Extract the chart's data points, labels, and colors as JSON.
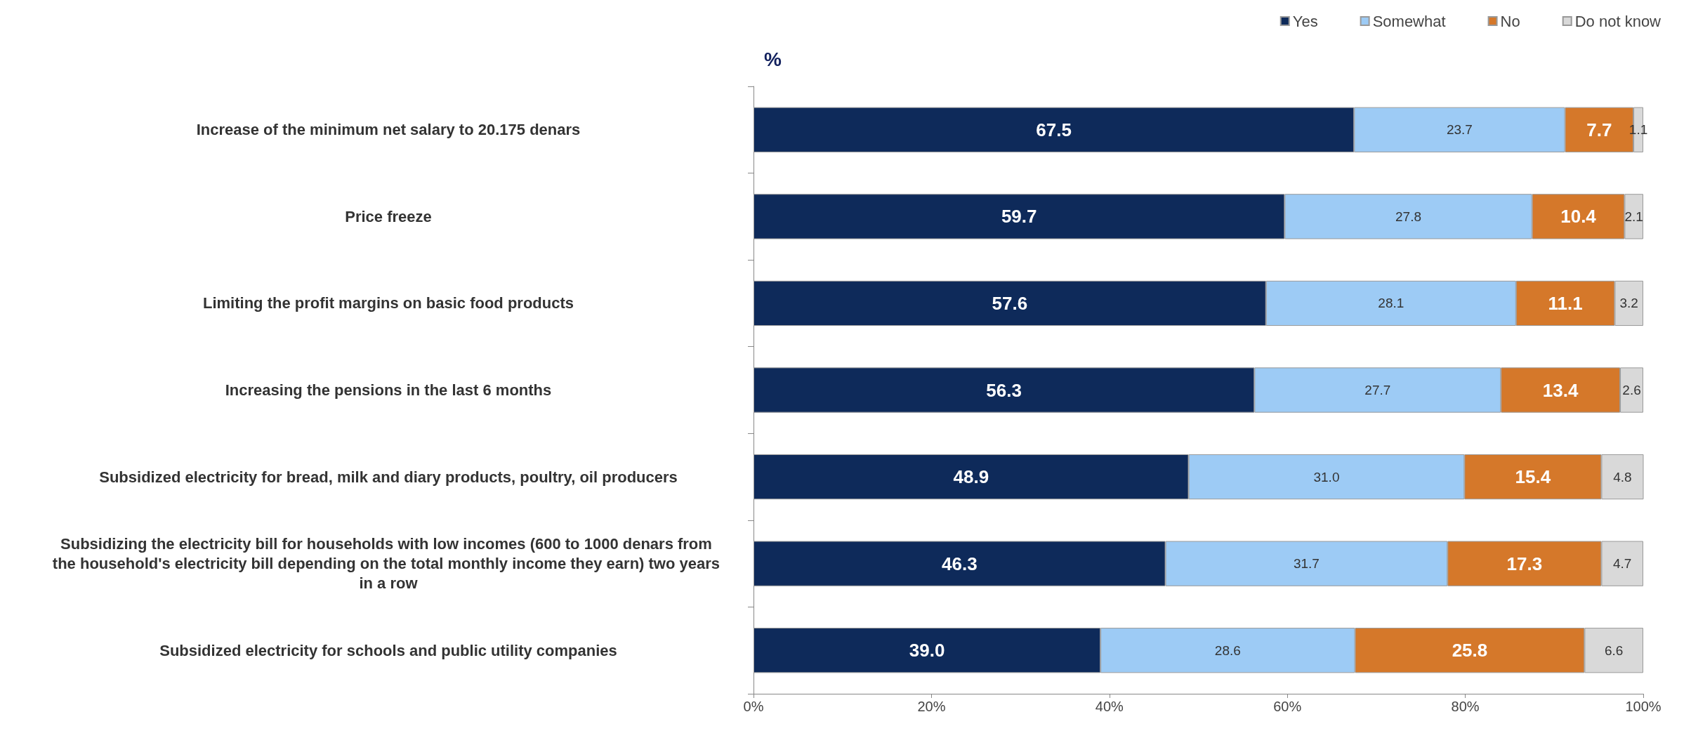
{
  "chart_data": {
    "type": "bar",
    "orientation": "horizontal",
    "stacked": true,
    "categories": [
      "Increase of the minimum net salary to 20.175 denars",
      "Price freeze",
      "Limiting the profit margins on basic food products",
      "Increasing the pensions in the last 6 months",
      "Subsidized electricity for bread, milk and diary products, poultry, oil producers",
      "Subsidizing the electricity bill for households with low incomes (600 to 1000 denars from the household's electricity bill depending on the total monthly income they earn) two years in a row",
      "Subsidized electricity for schools and public utility companies"
    ],
    "series": [
      {
        "name": "Yes",
        "color": "#0e2a5a",
        "values": [
          67.5,
          59.7,
          57.6,
          56.3,
          48.9,
          46.3,
          39
        ],
        "value_labels": [
          "67.5",
          "59.7",
          "57.6",
          "56.3",
          "48.9",
          "46.3",
          "39.0"
        ]
      },
      {
        "name": "Somewhat",
        "color": "#9dcbf5",
        "values": [
          23.7,
          27.8,
          28.1,
          27.7,
          31,
          31.7,
          28.6
        ],
        "value_labels": [
          "23.7",
          "27.8",
          "28.1",
          "27.7",
          "31.0",
          "31.7",
          "28.6"
        ]
      },
      {
        "name": "No",
        "color": "#d5782a",
        "values": [
          7.7,
          10.4,
          11.1,
          13.4,
          15.4,
          17.3,
          25.8
        ],
        "value_labels": [
          "7.7",
          "10.4",
          "11.1",
          "13.4",
          "15.4",
          "17.3",
          "25.8"
        ]
      },
      {
        "name": "Do not know",
        "color": "#d9d9d9",
        "values": [
          1.1,
          2.1,
          3.2,
          2.6,
          4.8,
          4.7,
          6.6
        ],
        "value_labels": [
          "1.1",
          "2.1",
          "3.2",
          "2.6",
          "4.8",
          "4.7",
          "6.6"
        ]
      }
    ],
    "xlim": [
      0,
      100
    ],
    "xticks": [
      {
        "value": 0,
        "label": "0%"
      },
      {
        "value": 20,
        "label": "20%"
      },
      {
        "value": 40,
        "label": "40%"
      },
      {
        "value": 60,
        "label": "60%"
      },
      {
        "value": 80,
        "label": "80%"
      },
      {
        "value": 100,
        "label": "100%"
      }
    ],
    "annotations": [
      "%"
    ],
    "legend": "top right",
    "grid": false
  }
}
